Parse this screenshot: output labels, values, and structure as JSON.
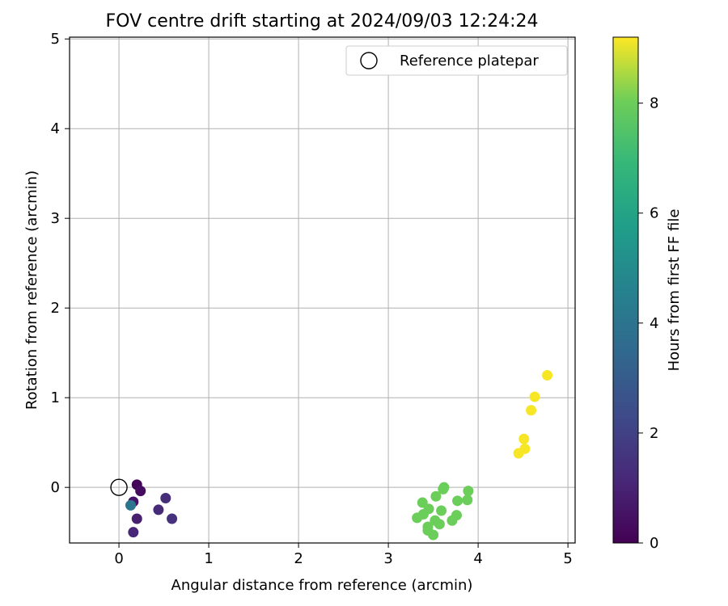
{
  "chart_data": {
    "type": "scatter",
    "title": "FOV centre drift starting at 2024/09/03 12:24:24",
    "xlabel": "Angular distance from reference (arcmin)",
    "ylabel": "Rotation from reference (arcmin)",
    "xlim": [
      -0.55,
      5.08
    ],
    "ylim": [
      -0.62,
      5.02
    ],
    "xticks": [
      0,
      1,
      2,
      3,
      4,
      5
    ],
    "yticks": [
      0,
      1,
      2,
      3,
      4,
      5
    ],
    "grid": true,
    "legend": {
      "label": "Reference platepar",
      "placement": "top-right"
    },
    "reference_point": {
      "x": 0,
      "y": 0
    },
    "colorbar": {
      "label": "Hours from first FF file",
      "min": 0,
      "max": 9.2,
      "ticks": [
        0,
        2,
        4,
        6,
        8
      ],
      "colormap": "viridis"
    },
    "points": [
      {
        "x": 0.2,
        "y": 0.03,
        "h": 0.1
      },
      {
        "x": 0.24,
        "y": -0.04,
        "h": 0.3
      },
      {
        "x": 0.16,
        "y": -0.16,
        "h": 0.5
      },
      {
        "x": 0.2,
        "y": -0.35,
        "h": 0.8
      },
      {
        "x": 0.16,
        "y": -0.5,
        "h": 1.0
      },
      {
        "x": 0.44,
        "y": -0.25,
        "h": 1.1
      },
      {
        "x": 0.52,
        "y": -0.12,
        "h": 1.2
      },
      {
        "x": 0.59,
        "y": -0.35,
        "h": 1.3
      },
      {
        "x": 0.13,
        "y": -0.2,
        "h": 3.6
      },
      {
        "x": 3.62,
        "y": 0.0,
        "h": 7.1
      },
      {
        "x": 3.61,
        "y": -0.02,
        "h": 7.1
      },
      {
        "x": 3.53,
        "y": -0.1,
        "h": 7.1
      },
      {
        "x": 3.89,
        "y": -0.04,
        "h": 7.1
      },
      {
        "x": 3.88,
        "y": -0.14,
        "h": 7.1
      },
      {
        "x": 3.77,
        "y": -0.15,
        "h": 7.1
      },
      {
        "x": 3.38,
        "y": -0.17,
        "h": 7.1
      },
      {
        "x": 3.45,
        "y": -0.24,
        "h": 7.1
      },
      {
        "x": 3.59,
        "y": -0.26,
        "h": 7.1
      },
      {
        "x": 3.39,
        "y": -0.3,
        "h": 7.1
      },
      {
        "x": 3.32,
        "y": -0.34,
        "h": 7.1
      },
      {
        "x": 3.52,
        "y": -0.37,
        "h": 7.1
      },
      {
        "x": 3.57,
        "y": -0.41,
        "h": 7.1
      },
      {
        "x": 3.76,
        "y": -0.31,
        "h": 7.1
      },
      {
        "x": 3.71,
        "y": -0.37,
        "h": 7.1
      },
      {
        "x": 3.44,
        "y": -0.44,
        "h": 7.1
      },
      {
        "x": 3.44,
        "y": -0.48,
        "h": 7.1
      },
      {
        "x": 3.5,
        "y": -0.53,
        "h": 7.1
      },
      {
        "x": 4.77,
        "y": 1.25,
        "h": 9.1
      },
      {
        "x": 4.63,
        "y": 1.01,
        "h": 9.1
      },
      {
        "x": 4.59,
        "y": 0.86,
        "h": 9.1
      },
      {
        "x": 4.51,
        "y": 0.54,
        "h": 9.1
      },
      {
        "x": 4.52,
        "y": 0.43,
        "h": 9.1
      },
      {
        "x": 4.45,
        "y": 0.38,
        "h": 9.1
      }
    ]
  }
}
